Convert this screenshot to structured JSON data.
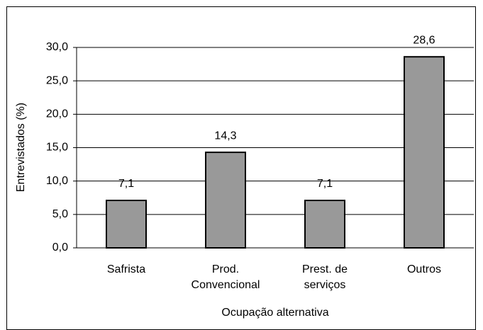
{
  "chart_data": {
    "type": "bar",
    "x_label": "Ocupação alternativa",
    "y_label": "Entrevistados (%)",
    "categories": [
      "Safrista",
      "Prod.\nConvencional",
      "Prest. de\nserviços",
      "Outros"
    ],
    "values": [
      7.1,
      14.3,
      7.1,
      28.6
    ],
    "value_labels": [
      "7,1",
      "14,3",
      "7,1",
      "28,6"
    ],
    "color": "#999999",
    "ylim": [
      0,
      30
    ],
    "yticks": [
      {
        "value": 0,
        "label": "0,0"
      },
      {
        "value": 5,
        "label": "5,0"
      },
      {
        "value": 10,
        "label": "10,0"
      },
      {
        "value": 15,
        "label": "15,0"
      },
      {
        "value": 20,
        "label": "20,0"
      },
      {
        "value": 25,
        "label": "25,0"
      },
      {
        "value": 30,
        "label": "30,0"
      }
    ],
    "grid": true
  }
}
